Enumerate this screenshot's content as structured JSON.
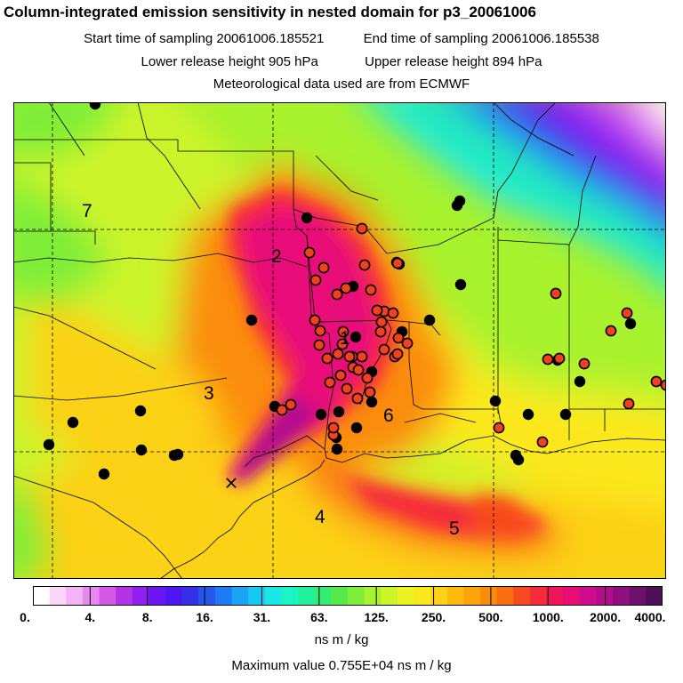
{
  "header": {
    "title": "Column-integrated emission sensitivity in nested domain for p3_20061006",
    "start_label": "Start time of sampling 20061006.185521",
    "end_label": "End time of sampling 20061006.185538",
    "lower_label": "Lower release height  905 hPa",
    "upper_label": "Upper release height  894 hPa",
    "met_label": "Meteorological data used are from ECMWF"
  },
  "map": {
    "region_numbers": [
      "1",
      "2",
      "3",
      "4",
      "5",
      "6",
      "7"
    ],
    "release_marker": "×"
  },
  "colorbar": {
    "labels": [
      "0.",
      "4.",
      "8.",
      "16.",
      "31.",
      "63.",
      "125.",
      "250.",
      "500.",
      "1000.",
      "2000.",
      "4000."
    ],
    "colors": [
      "#ffffff",
      "#fbd6fb",
      "#f4b3f6",
      "#e887f0",
      "#d45ae6",
      "#b233e6",
      "#8f1ff2",
      "#6d14f5",
      "#4e16f0",
      "#3430e8",
      "#2557ec",
      "#1f7af5",
      "#1ca2f7",
      "#18c8f4",
      "#1ae8e6",
      "#1af5c4",
      "#22f09e",
      "#33ec72",
      "#55ea4c",
      "#7fee38",
      "#a8f22e",
      "#ccf42a",
      "#ecf224",
      "#fbe81c",
      "#fcd214",
      "#fdbb0d",
      "#fca40a",
      "#fb8c0a",
      "#fa6e12",
      "#f84a1f",
      "#f52a3a",
      "#f21458",
      "#e80c78",
      "#d10c8c",
      "#b30d8e",
      "#8f0f7f",
      "#6d106b",
      "#4c0f55"
    ],
    "unit": "ns m / kg",
    "max_value_text": "Maximum value  0.755E+04 ns m / kg"
  }
}
